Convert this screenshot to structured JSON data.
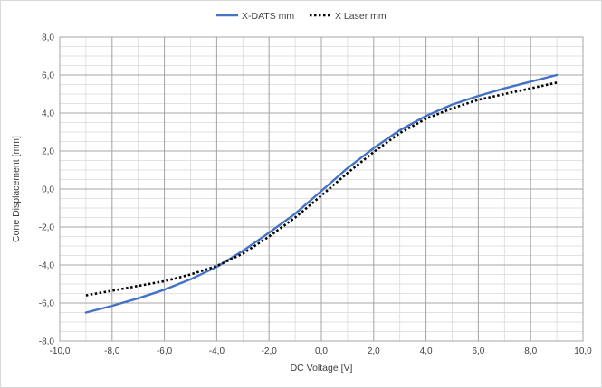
{
  "chart_data": {
    "type": "line",
    "title": "",
    "xlabel": "DC Voltage [V]",
    "ylabel": "Cone Displacement [mm]",
    "xlim": [
      -10,
      10
    ],
    "ylim": [
      -8,
      8
    ],
    "x_major_ticks": [
      -10,
      -8,
      -6,
      -4,
      -2,
      0,
      2,
      4,
      6,
      8,
      10
    ],
    "y_major_ticks": [
      -8,
      -6,
      -4,
      -2,
      0,
      2,
      4,
      6,
      8
    ],
    "x_tick_labels": [
      "-10,0",
      "-8,0",
      "-6,0",
      "-4,0",
      "-2,0",
      "0,0",
      "2,0",
      "4,0",
      "6,0",
      "8,0",
      "10,0"
    ],
    "y_tick_labels": [
      "-8,0",
      "-6,0",
      "-4,0",
      "-2,0",
      "0,0",
      "2,0",
      "4,0",
      "6,0",
      "8,0"
    ],
    "minor_grid_step": {
      "x": 1,
      "y": 0.5
    },
    "grid": true,
    "legend_position": "top-center",
    "series": [
      {
        "name": "X-DATS mm",
        "color": "#4472C4",
        "style": "solid",
        "x": [
          -9,
          -8,
          -7,
          -6,
          -5,
          -4,
          -3,
          -2,
          -1,
          0,
          1,
          2,
          3,
          4,
          5,
          6,
          7,
          8,
          9
        ],
        "y": [
          -6.5,
          -6.15,
          -5.75,
          -5.3,
          -4.75,
          -4.1,
          -3.25,
          -2.3,
          -1.3,
          -0.1,
          1.1,
          2.15,
          3.1,
          3.85,
          4.45,
          4.9,
          5.3,
          5.65,
          6.0
        ]
      },
      {
        "name": "X Laser mm",
        "color": "#000000",
        "style": "dotted",
        "x": [
          -9,
          -8,
          -7,
          -6,
          -5,
          -4,
          -3,
          -2,
          -1,
          0,
          1,
          2,
          3,
          4,
          5,
          6,
          7,
          8,
          9
        ],
        "y": [
          -5.6,
          -5.35,
          -5.1,
          -4.85,
          -4.5,
          -4.05,
          -3.4,
          -2.5,
          -1.5,
          -0.35,
          0.85,
          1.95,
          2.95,
          3.7,
          4.25,
          4.7,
          5.0,
          5.3,
          5.6
        ]
      }
    ]
  }
}
